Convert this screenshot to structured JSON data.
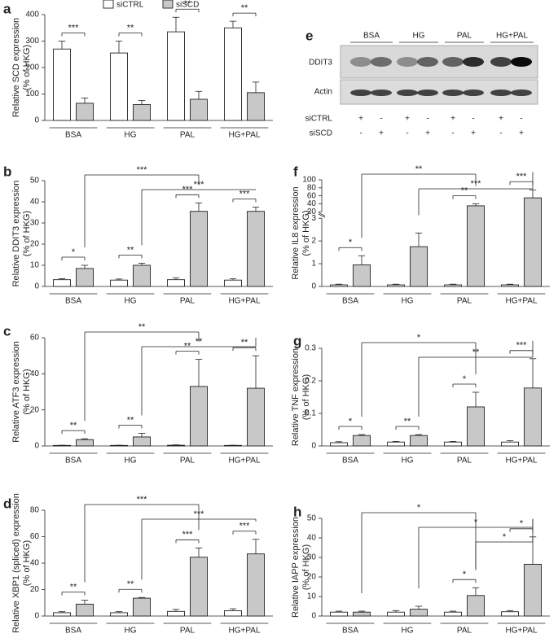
{
  "chart_data": [
    {
      "type": "bar",
      "panel": "a",
      "y_label": [
        "Relative SCD expression",
        "(% of HKG)"
      ],
      "legend": true,
      "categories": [
        "BSA",
        "HG",
        "PAL",
        "HG+PAL"
      ],
      "series": [
        {
          "name": "siCTRL",
          "color": "#ffffff",
          "values": [
            270,
            255,
            335,
            350
          ],
          "errors": [
            30,
            45,
            55,
            25
          ]
        },
        {
          "name": "siSCD",
          "color": "#c8c8c8",
          "values": [
            65,
            60,
            80,
            105
          ],
          "errors": [
            20,
            15,
            30,
            40
          ]
        }
      ],
      "ylim": [
        0,
        400
      ],
      "yticks": [
        0,
        100,
        200,
        300,
        400
      ],
      "pair_sig": [
        "***",
        "**",
        "**",
        "**"
      ],
      "cross_sig": []
    },
    {
      "type": "bar",
      "panel": "b",
      "y_label": [
        "Relative DDIT3 expression",
        "(% of HKG)"
      ],
      "categories": [
        "BSA",
        "HG",
        "PAL",
        "HG+PAL"
      ],
      "series": [
        {
          "color": "#ffffff",
          "values": [
            3.2,
            3,
            3.2,
            3
          ],
          "errors": [
            0.5,
            0.5,
            0.8,
            0.6
          ]
        },
        {
          "color": "#c8c8c8",
          "values": [
            8.5,
            10,
            35.5,
            35.5
          ],
          "errors": [
            1.5,
            1,
            4,
            2
          ]
        }
      ],
      "ylim": [
        0,
        50
      ],
      "yticks": [
        0,
        10,
        20,
        30,
        40,
        50
      ],
      "pair_sig": [
        "*",
        "**",
        "***",
        "***"
      ],
      "cross_sig": [
        "***",
        "***"
      ]
    },
    {
      "type": "bar",
      "panel": "c",
      "y_label": [
        "Relative ATF3 expression",
        "(% of HKG)"
      ],
      "categories": [
        "BSA",
        "HG",
        "PAL",
        "HG+PAL"
      ],
      "series": [
        {
          "color": "#ffffff",
          "values": [
            0.3,
            0.3,
            0.4,
            0.3
          ],
          "errors": [
            0.1,
            0.1,
            0.2,
            0.1
          ]
        },
        {
          "color": "#c8c8c8",
          "values": [
            3.5,
            5,
            33,
            32
          ],
          "errors": [
            0.5,
            2,
            15,
            18
          ]
        }
      ],
      "ylim": [
        0,
        60
      ],
      "yticks": [
        0,
        20,
        40,
        60
      ],
      "pair_sig": [
        "**",
        "**",
        "**",
        "**"
      ],
      "cross_sig": [
        "**",
        "**"
      ]
    },
    {
      "type": "bar",
      "panel": "d",
      "y_label": [
        "Relative XBP1 (spliced) expression",
        "(% of HKG)"
      ],
      "categories": [
        "BSA",
        "HG",
        "PAL",
        "HG+PAL"
      ],
      "series": [
        {
          "color": "#ffffff",
          "values": [
            2.5,
            2.5,
            3.5,
            4
          ],
          "errors": [
            0.8,
            0.8,
            1.5,
            1.5
          ]
        },
        {
          "color": "#c8c8c8",
          "values": [
            9,
            13.5,
            44.5,
            47
          ],
          "errors": [
            3,
            0.5,
            7,
            11
          ]
        }
      ],
      "ylim": [
        0,
        80
      ],
      "yticks": [
        0,
        20,
        40,
        60,
        80
      ],
      "pair_sig": [
        "**",
        "**",
        "***",
        "***"
      ],
      "cross_sig": [
        "***",
        "***"
      ]
    },
    {
      "type": "bar",
      "panel": "f",
      "y_label": [
        "Relative IL8 expression",
        "(% of HKG)"
      ],
      "categories": [
        "BSA",
        "HG",
        "PAL",
        "HG+PAL"
      ],
      "series": [
        {
          "color": "#ffffff",
          "values": [
            0.07,
            0.07,
            0.07,
            0.07
          ],
          "errors": [
            0.03,
            0.03,
            0.03,
            0.03
          ]
        },
        {
          "color": "#c8c8c8",
          "values": [
            0.95,
            1.75,
            35,
            55
          ],
          "errors": [
            0.4,
            0.6,
            5,
            20
          ]
        }
      ],
      "ylim": [
        0,
        100
      ],
      "ybreak": [
        3,
        20
      ],
      "yticks": [
        0,
        1,
        2,
        3,
        20,
        40,
        60,
        80,
        100
      ],
      "pair_sig": [
        "*",
        null,
        "**",
        "***"
      ],
      "cross_sig": [
        "**",
        "***"
      ]
    },
    {
      "type": "bar",
      "panel": "g",
      "y_label": [
        "Relative TNF expression",
        "(% of HKG)"
      ],
      "categories": [
        "BSA",
        "HG",
        "PAL",
        "HG+PAL"
      ],
      "series": [
        {
          "color": "#ffffff",
          "values": [
            0.01,
            0.012,
            0.012,
            0.012
          ],
          "errors": [
            0.003,
            0.002,
            0.002,
            0.004
          ]
        },
        {
          "color": "#c8c8c8",
          "values": [
            0.032,
            0.032,
            0.12,
            0.178
          ],
          "errors": [
            0.003,
            0.003,
            0.045,
            0.09
          ]
        }
      ],
      "ylim": [
        0,
        0.3
      ],
      "yticks": [
        0,
        0.1,
        0.2,
        0.3
      ],
      "pair_sig": [
        "*",
        "**",
        "*",
        "***"
      ],
      "cross_sig": [
        "*",
        "**"
      ]
    },
    {
      "type": "bar",
      "panel": "h",
      "y_label": [
        "Relative IAPP expression",
        "(% of HKG)"
      ],
      "categories": [
        "BSA",
        "HG",
        "PAL",
        "HG+PAL"
      ],
      "series": [
        {
          "color": "#ffffff",
          "values": [
            2,
            2,
            2,
            2.2
          ],
          "errors": [
            0.5,
            0.8,
            0.5,
            0.6
          ]
        },
        {
          "color": "#c8c8c8",
          "values": [
            2,
            3.5,
            10.5,
            26.5
          ],
          "errors": [
            0.5,
            1.5,
            4,
            14
          ]
        }
      ],
      "ylim": [
        0,
        50
      ],
      "yticks": [
        0,
        10,
        20,
        30,
        40,
        50
      ],
      "pair_sig": [
        null,
        null,
        "*",
        "*"
      ],
      "cross_sig": [
        "*",
        "*",
        "*"
      ]
    }
  ],
  "blot": {
    "panel": "e",
    "groups": [
      "BSA",
      "HG",
      "PAL",
      "HG+PAL"
    ],
    "rows": [
      "DDIT3",
      "Actin"
    ],
    "conditions": [
      {
        "name": "siCTRL",
        "signs": [
          "+",
          "-",
          "+",
          "-",
          "+",
          "-",
          "+",
          "-"
        ]
      },
      {
        "name": "siSCD",
        "signs": [
          "-",
          "+",
          "-",
          "+",
          "-",
          "+",
          "-",
          "+"
        ]
      }
    ]
  }
}
